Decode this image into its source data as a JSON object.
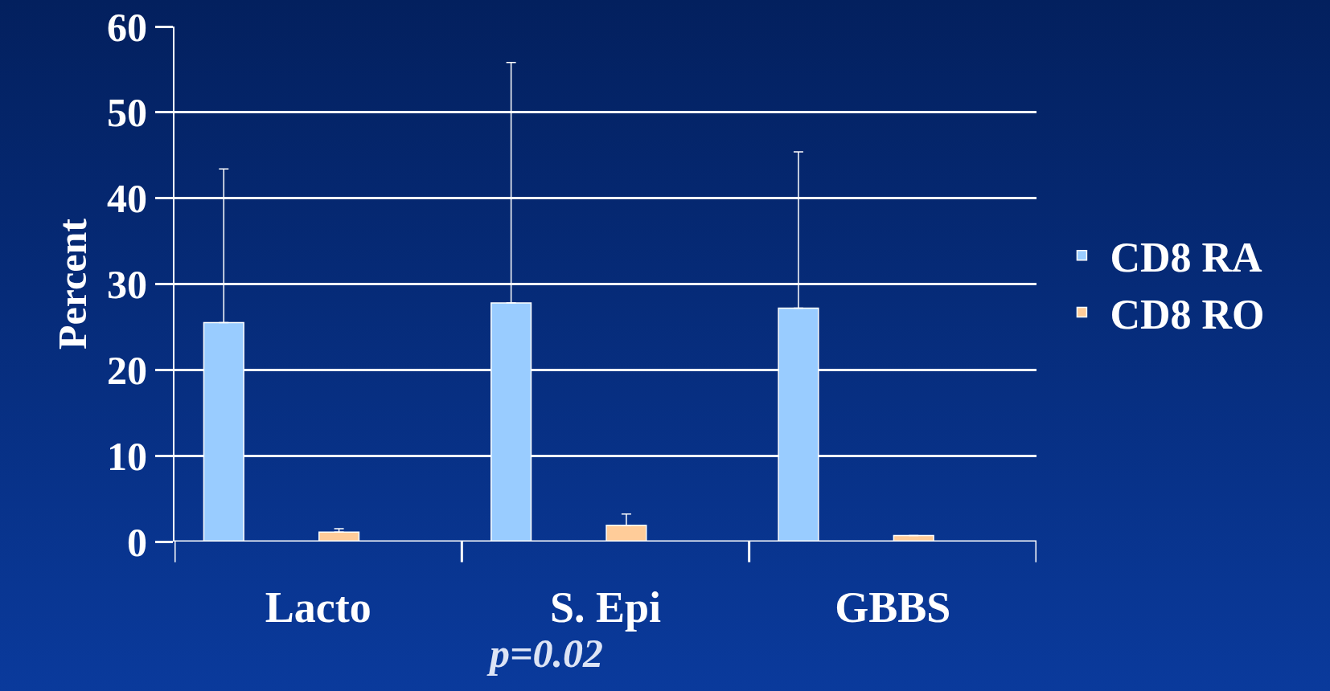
{
  "chart_data": {
    "type": "bar",
    "ylabel": "Percent",
    "categories": [
      "Lacto",
      "S. Epi",
      "GBBS"
    ],
    "series": [
      {
        "name": "CD8 RA",
        "color": "#99ccff",
        "values": [
          25.5,
          27.8,
          27.2
        ],
        "errors": [
          [
            25.5,
            43.4
          ],
          [
            27.8,
            55.8
          ],
          [
            27.2,
            45.4
          ]
        ]
      },
      {
        "name": "CD8 RO",
        "color": "#ffcc99",
        "values": [
          1.1,
          1.9,
          0.7
        ],
        "errors": [
          [
            1.1,
            1.5
          ],
          [
            1.9,
            3.2
          ],
          null
        ]
      }
    ],
    "ylim": [
      0,
      60
    ],
    "yticks": [
      0,
      10,
      20,
      30,
      40,
      50,
      60
    ],
    "grid": "y",
    "legend": "right",
    "annotations": [
      "p=0.02"
    ]
  }
}
